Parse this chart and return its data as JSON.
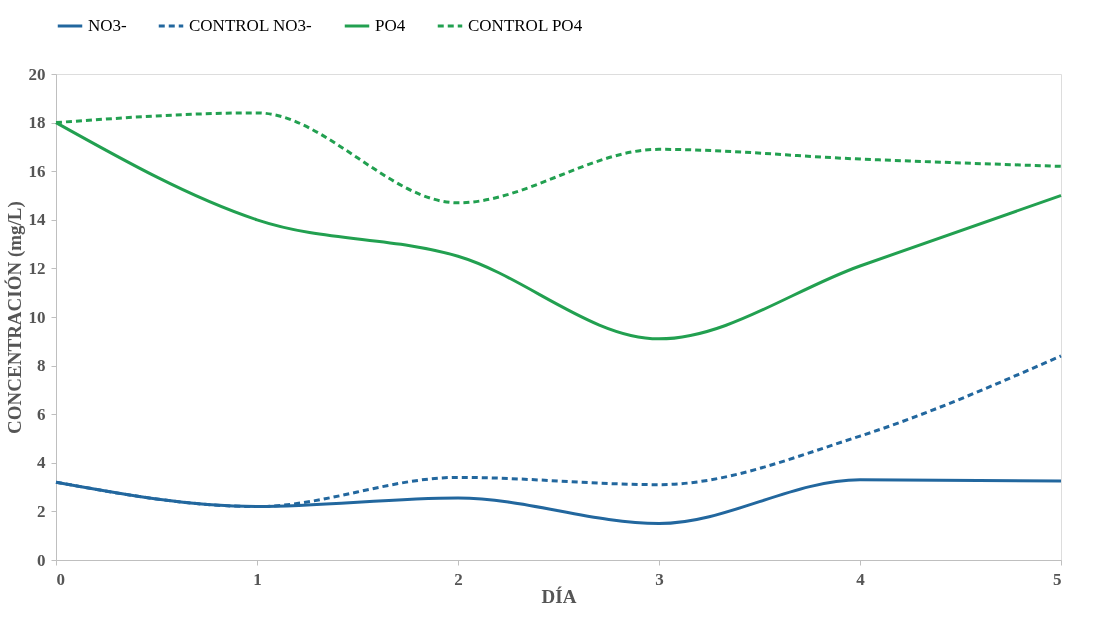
{
  "chart_data": {
    "type": "line",
    "xlabel": "DÍA",
    "ylabel": "CONCENTRACIÓN  (mg/L)",
    "x": [
      0,
      1,
      2,
      3,
      4,
      5
    ],
    "xlim": [
      0,
      5
    ],
    "xticks": [
      0,
      1,
      2,
      3,
      4,
      5
    ],
    "ylim": [
      0,
      20
    ],
    "yticks": [
      0,
      2,
      4,
      6,
      8,
      10,
      12,
      14,
      16,
      18,
      20
    ],
    "grid": false,
    "legend": "top",
    "series": [
      {
        "name": "NO3-",
        "color": "#22679e",
        "line_style": "solid",
        "values": [
          3.2,
          2.2,
          2.55,
          1.5,
          3.3,
          3.25
        ]
      },
      {
        "name": "CONTROL NO3-",
        "color": "#22679e",
        "line_style": "dashed",
        "values": [
          3.2,
          2.2,
          3.4,
          3.1,
          5.1,
          8.4
        ]
      },
      {
        "name": "PO4",
        "color": "#22a050",
        "line_style": "solid",
        "values": [
          18,
          14,
          12.5,
          9.1,
          12.1,
          15
        ]
      },
      {
        "name": "CONTROL PO4",
        "color": "#22a050",
        "line_style": "dashed",
        "values": [
          18,
          18.4,
          14.7,
          16.9,
          16.5,
          16.2
        ]
      }
    ]
  }
}
